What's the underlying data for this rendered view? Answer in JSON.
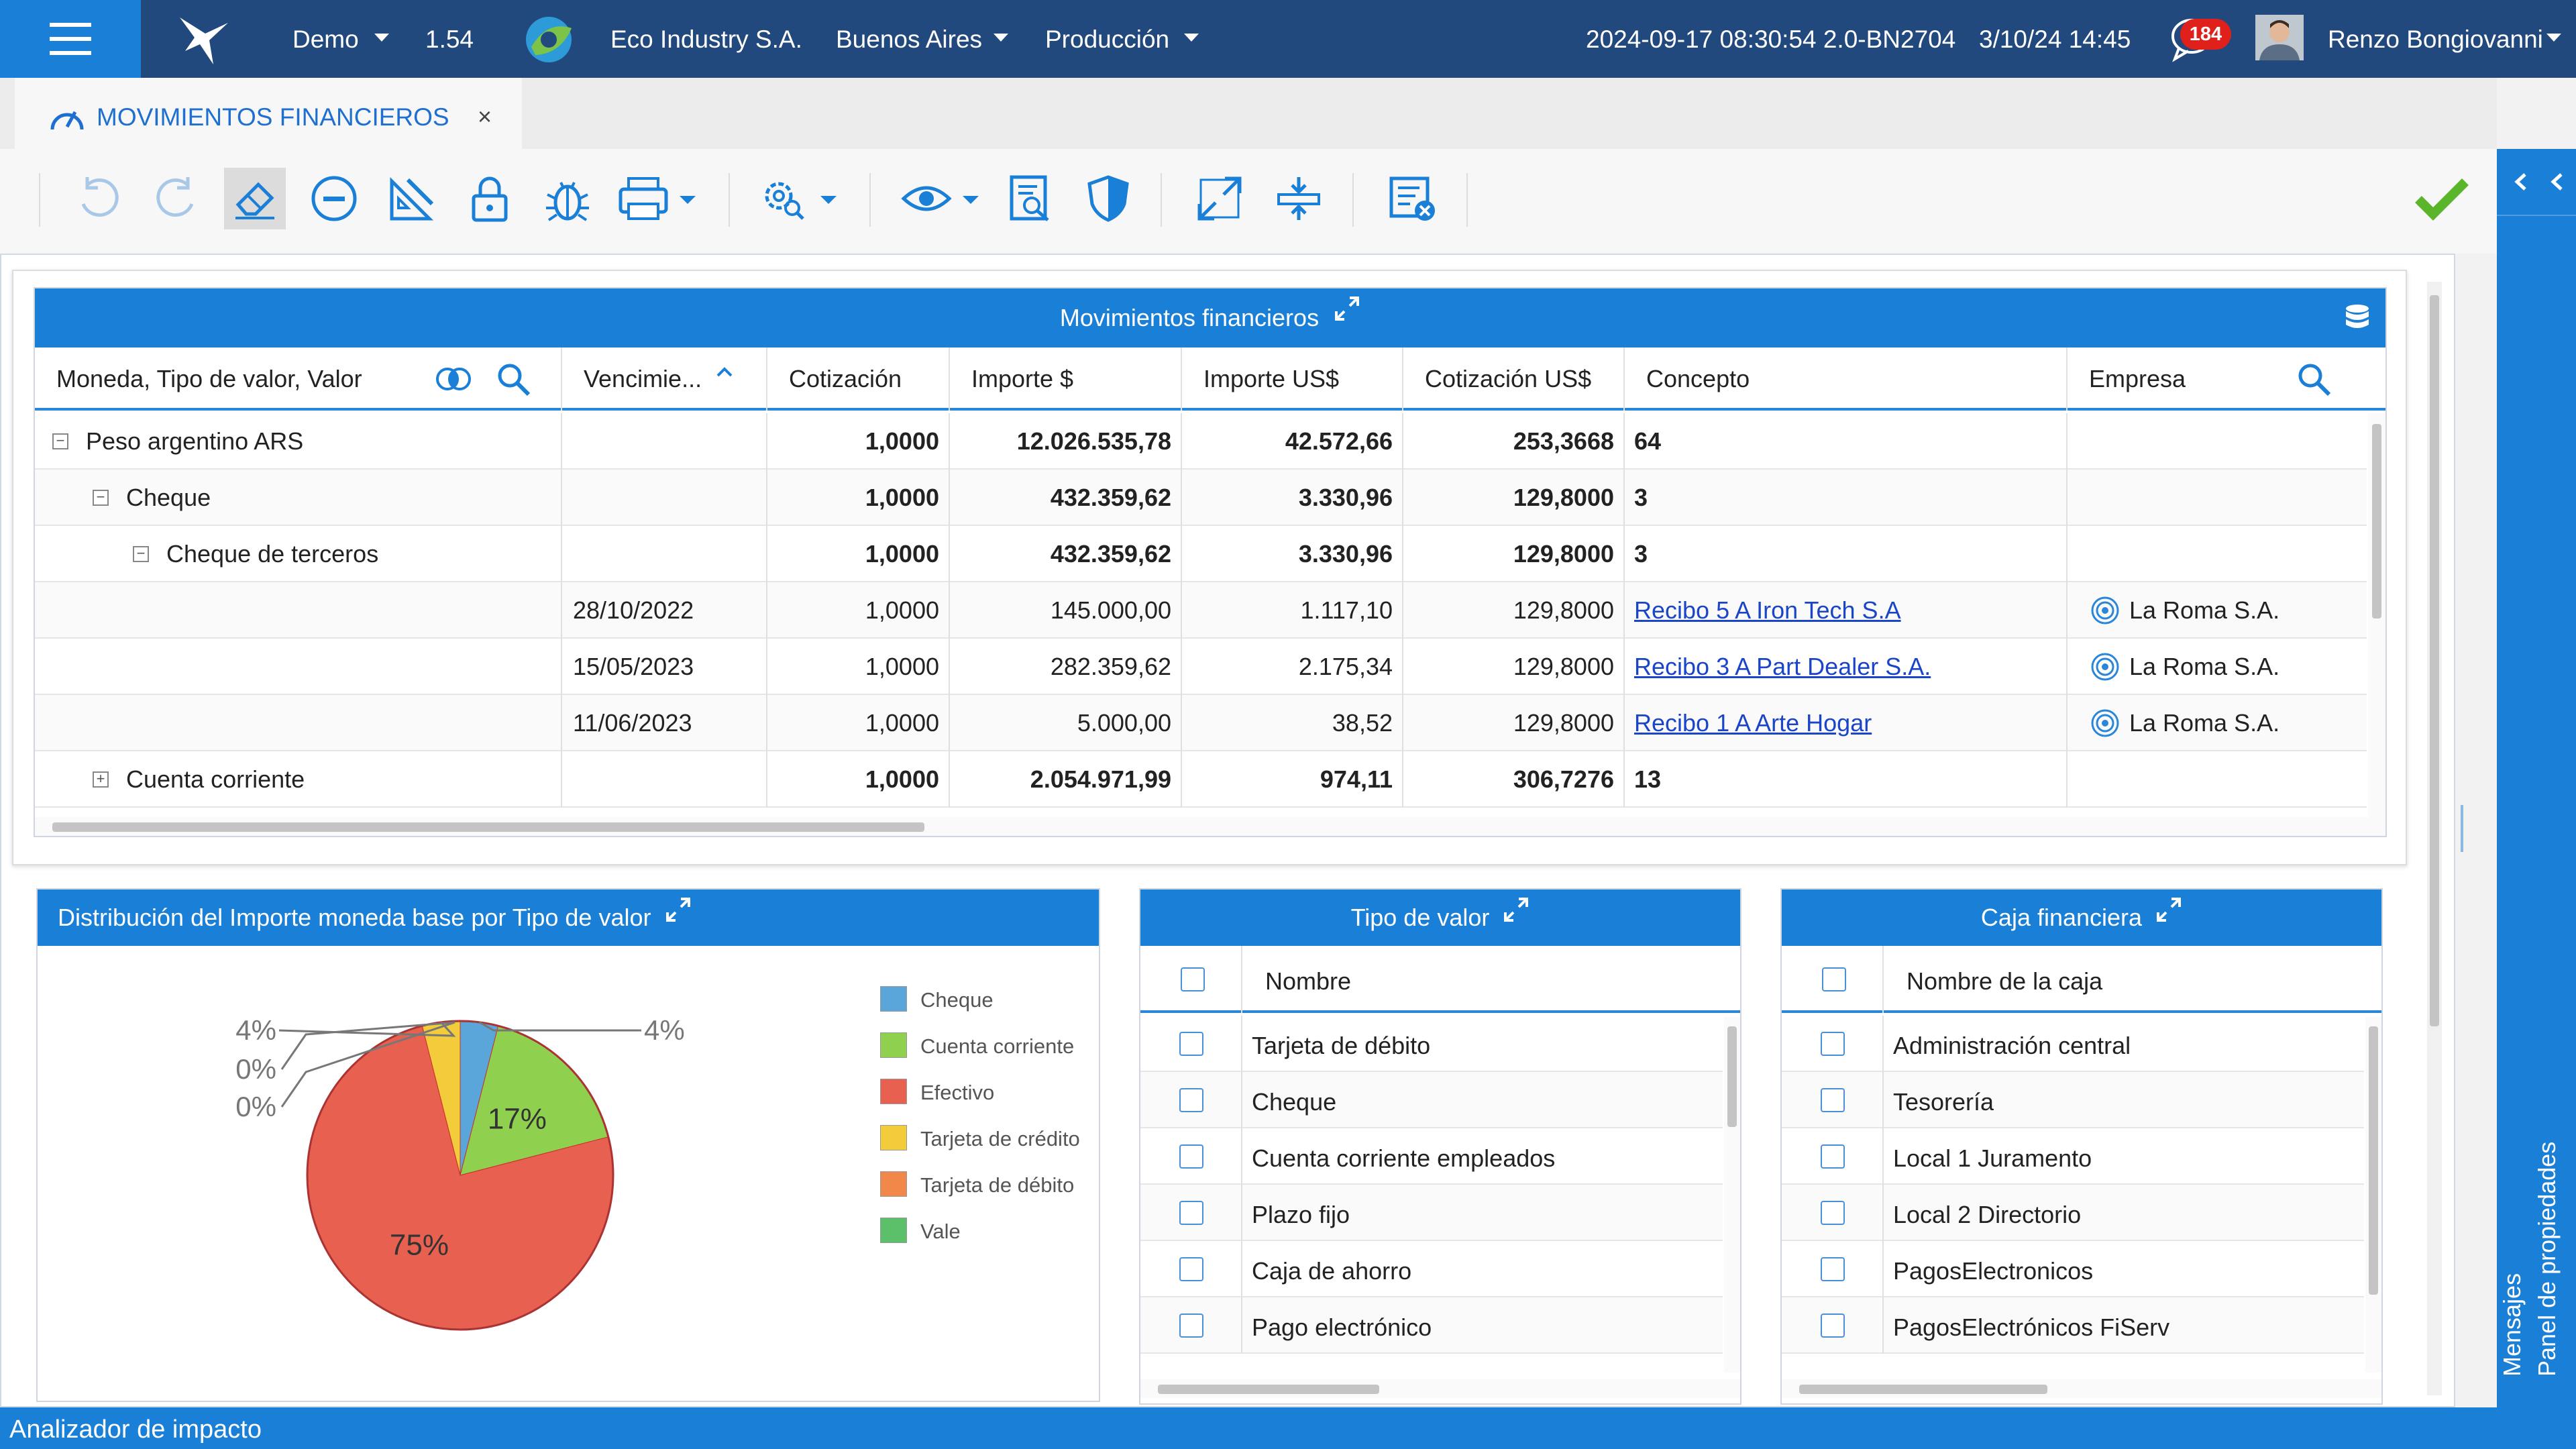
{
  "topbar": {
    "company_env": "Demo",
    "version": "1.54",
    "company": "Eco Industry S.A.",
    "city": "Buenos Aires",
    "mode": "Producción",
    "build": "2024-09-17 08:30:54 2.0-BN2704",
    "datetime": "3/10/24 14:45",
    "notifications": "184",
    "user": "Renzo Bongiovanni"
  },
  "tab": {
    "title": "MOVIMIENTOS FINANCIEROS",
    "close": "×"
  },
  "toolbar": {
    "icons": [
      "undo-icon",
      "redo-icon",
      "eraser-icon",
      "minus-circle-icon",
      "design-icon",
      "lock-icon",
      "bug-icon",
      "print-icon",
      "settings-search-icon",
      "view-icon",
      "search-document-icon",
      "shield-icon",
      "expand-icon",
      "split-icon",
      "list-delete-icon",
      "check-icon"
    ]
  },
  "grid": {
    "title": "Movimientos financieros",
    "headers": [
      "Moneda, Tipo de valor, Valor",
      "Vencimie...",
      "Cotización",
      "Importe $",
      "Importe US$",
      "Cotización US$",
      "Concepto",
      "Empresa"
    ],
    "rows": [
      {
        "label": "Peso argentino ARS",
        "venc": "",
        "cot": "1,0000",
        "imp": "12.026.535,78",
        "usd": "42.572,66",
        "cotusd": "253,3668",
        "concepto": "64",
        "empresa": ""
      },
      {
        "label": "Cheque",
        "venc": "",
        "cot": "1,0000",
        "imp": "432.359,62",
        "usd": "3.330,96",
        "cotusd": "129,8000",
        "concepto": "3",
        "empresa": ""
      },
      {
        "label": "Cheque de terceros",
        "venc": "",
        "cot": "1,0000",
        "imp": "432.359,62",
        "usd": "3.330,96",
        "cotusd": "129,8000",
        "concepto": "3",
        "empresa": ""
      },
      {
        "label": "",
        "venc": "28/10/2022",
        "cot": "1,0000",
        "imp": "145.000,00",
        "usd": "1.117,10",
        "cotusd": "129,8000",
        "concepto": "Recibo 5 A Iron Tech S.A",
        "empresa": "La Roma S.A."
      },
      {
        "label": "",
        "venc": "15/05/2023",
        "cot": "1,0000",
        "imp": "282.359,62",
        "usd": "2.175,34",
        "cotusd": "129,8000",
        "concepto": "Recibo 3 A Part Dealer S.A.",
        "empresa": "La Roma S.A."
      },
      {
        "label": "",
        "venc": "11/06/2023",
        "cot": "1,0000",
        "imp": "5.000,00",
        "usd": "38,52",
        "cotusd": "129,8000",
        "concepto": "Recibo 1 A Arte Hogar",
        "empresa": "La Roma S.A."
      },
      {
        "label": "Cuenta corriente",
        "venc": "",
        "cot": "1,0000",
        "imp": "2.054.971,99",
        "usd": "974,11",
        "cotusd": "306,7276",
        "concepto": "13",
        "empresa": ""
      }
    ]
  },
  "chart_data": {
    "type": "pie",
    "title": "Distribución del Importe moneda base por Tipo de valor",
    "categories": [
      "Cheque",
      "Cuenta corriente",
      "Efectivo",
      "Tarjeta de crédito",
      "Tarjeta de débito",
      "Vale"
    ],
    "values": [
      4,
      17,
      75,
      4,
      0,
      0
    ],
    "labels": [
      "4%",
      "17%",
      "75%",
      "4%",
      "0%",
      "0%"
    ],
    "colors": [
      "#5aa5d9",
      "#8fd14f",
      "#e8604f",
      "#f2cc3b",
      "#f2874a",
      "#5cbf6a"
    ],
    "legend": "right"
  },
  "tipo": {
    "title": "Tipo de valor",
    "header": "Nombre",
    "items": [
      "Tarjeta de débito",
      "Cheque",
      "Cuenta corriente empleados",
      "Plazo fijo",
      "Caja de ahorro",
      "Pago electrónico"
    ]
  },
  "caja": {
    "title": "Caja financiera",
    "header": "Nombre de la caja",
    "items": [
      "Administración central",
      "Tesorería",
      "Local 1 Juramento",
      "Local 2 Directorio",
      "PagosElectronicos",
      "PagosElectrónicos FiServ"
    ]
  },
  "side": {
    "props": "Panel de propiedades",
    "msgs": "Mensajes"
  },
  "status": {
    "label": "Analizador de impacto"
  }
}
